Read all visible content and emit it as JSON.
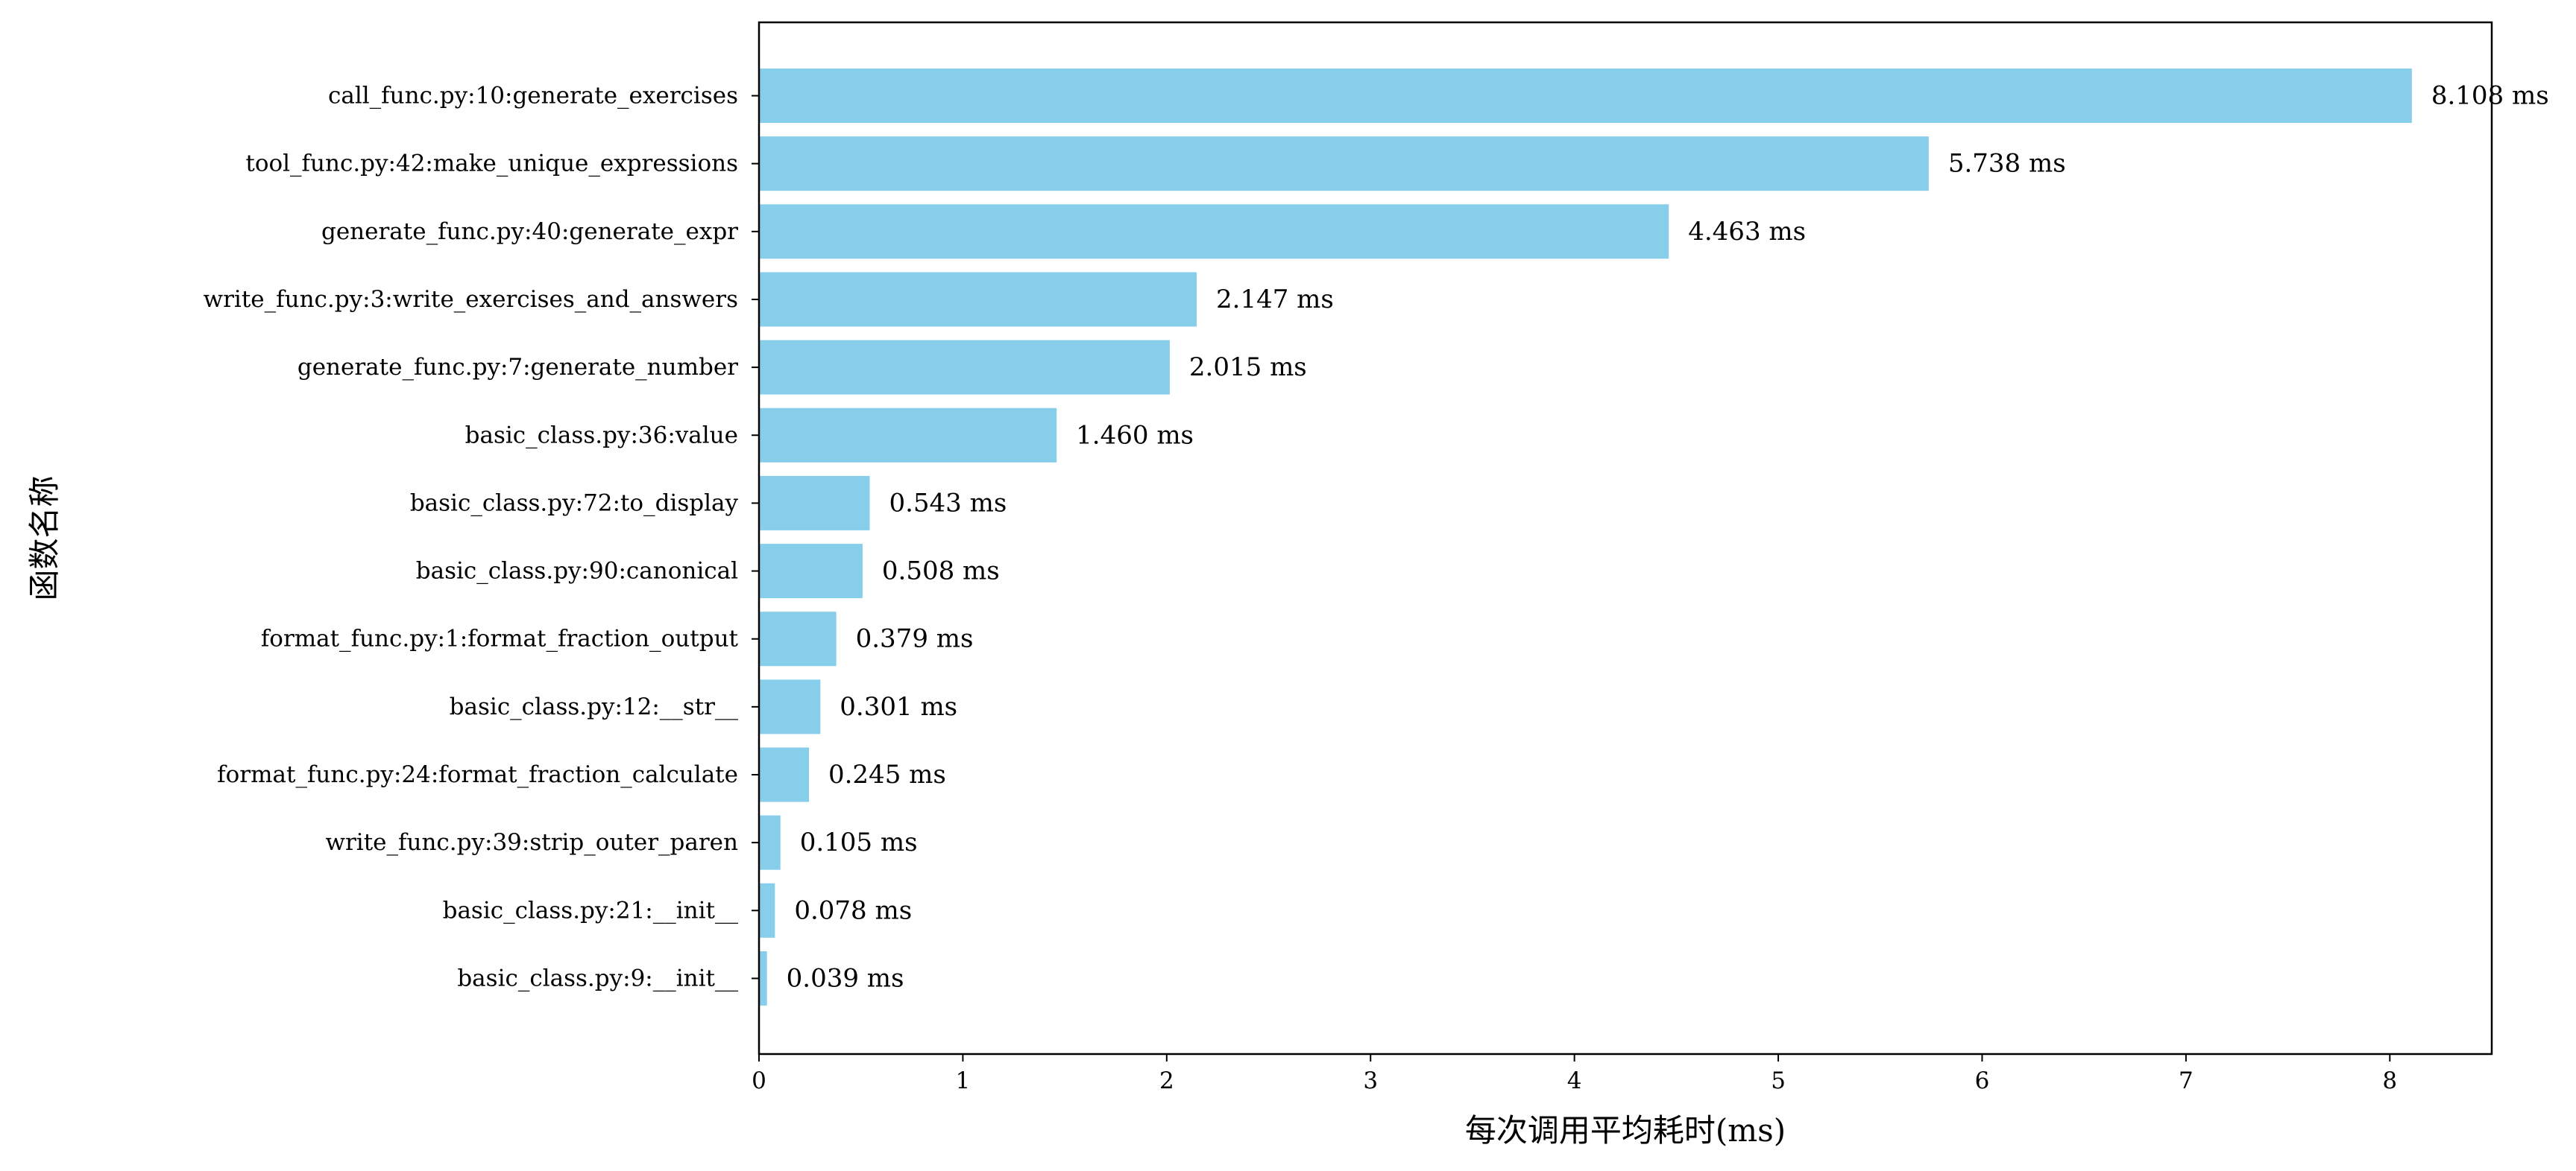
{
  "chart_data": {
    "type": "bar",
    "orientation": "horizontal",
    "categories": [
      "call_func.py:10:generate_exercises",
      "tool_func.py:42:make_unique_expressions",
      "generate_func.py:40:generate_expr",
      "write_func.py:3:write_exercises_and_answers",
      "generate_func.py:7:generate_number",
      "basic_class.py:36:value",
      "basic_class.py:72:to_display",
      "basic_class.py:90:canonical",
      "format_func.py:1:format_fraction_output",
      "basic_class.py:12:__str__",
      "format_func.py:24:format_fraction_calculate",
      "write_func.py:39:strip_outer_paren",
      "basic_class.py:21:__init__",
      "basic_class.py:9:__init__"
    ],
    "values": [
      8.108,
      5.738,
      4.463,
      2.147,
      2.015,
      1.46,
      0.543,
      0.508,
      0.379,
      0.301,
      0.245,
      0.105,
      0.078,
      0.039
    ],
    "data_labels": [
      "8.108 ms",
      "5.738 ms",
      "4.463 ms",
      "2.147 ms",
      "2.015 ms",
      "1.460 ms",
      "0.543 ms",
      "0.508 ms",
      "0.379 ms",
      "0.301 ms",
      "0.245 ms",
      "0.105 ms",
      "0.078 ms",
      "0.039 ms"
    ],
    "xlabel": "每次调用平均耗时(ms)",
    "ylabel": "函数名称",
    "xlim": [
      0,
      8.5
    ],
    "xticks": [
      0,
      1,
      2,
      3,
      4,
      5,
      6,
      7,
      8
    ],
    "xtick_labels": [
      "0",
      "1",
      "2",
      "3",
      "4",
      "5",
      "6",
      "7",
      "8"
    ],
    "bar_color": "#87CEEB",
    "grid": false,
    "legend": "none"
  }
}
